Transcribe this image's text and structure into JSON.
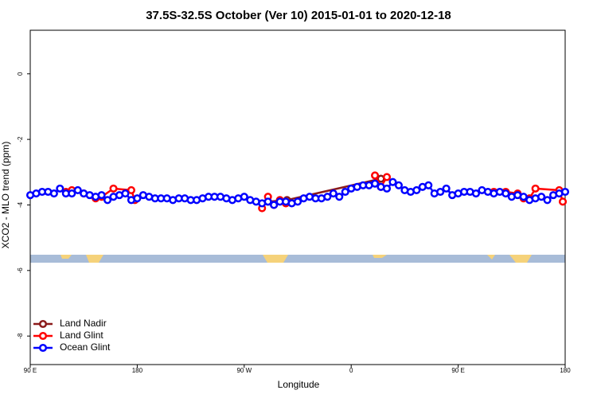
{
  "chart_data": {
    "type": "line",
    "title": "37.5S-32.5S October (Ver 10)   2015-01-01 to 2020-12-18",
    "x_label": "Longitude",
    "y_label": "XCO2 - MLO trend (ppm)",
    "xlim": [
      90,
      540
    ],
    "ylim": [
      -8.87,
      1.33
    ],
    "xticks": [
      {
        "value": 90,
        "label": "90 E"
      },
      180,
      {
        "value": 270,
        "label": "90 W"
      },
      {
        "value": 360,
        "label": "0"
      },
      {
        "value": 450,
        "label": "90 E"
      },
      {
        "value": 540,
        "label": "180"
      }
    ],
    "yticks": [
      0,
      -2,
      -4,
      -6,
      -8
    ],
    "legend": "bottom-left",
    "series": [
      {
        "name": "Land Nadir",
        "color": "#8b1a1a",
        "x": [
          290,
          306,
          385
        ],
        "values": [
          -3.9,
          -3.85,
          -3.2
        ]
      },
      {
        "name": "Land Glint",
        "color": "#ff0000",
        "x": [
          120,
          125,
          135,
          145,
          150,
          160,
          175,
          178,
          200,
          285,
          290,
          295,
          300,
          305,
          330,
          380,
          385,
          390,
          420,
          480,
          490,
          500,
          505,
          510,
          515,
          535,
          538
        ],
        "values": [
          -3.6,
          -3.55,
          -3.65,
          -3.8,
          -3.75,
          -3.5,
          -3.55,
          -3.85,
          null,
          -4.1,
          -3.75,
          -4.0,
          -3.85,
          -3.95,
          null,
          -3.1,
          -3.45,
          -3.15,
          null,
          -3.6,
          -3.6,
          -3.65,
          -3.8,
          -3.8,
          -3.5,
          -3.55,
          -3.9
        ]
      },
      {
        "name": "Ocean Glint",
        "color": "#0000ff",
        "x": [
          90,
          95,
          100,
          105,
          110,
          115,
          120,
          125,
          130,
          135,
          140,
          145,
          150,
          155,
          160,
          165,
          170,
          175,
          180,
          185,
          190,
          195,
          200,
          205,
          210,
          215,
          220,
          225,
          230,
          235,
          240,
          245,
          250,
          255,
          260,
          265,
          270,
          275,
          280,
          285,
          290,
          295,
          300,
          305,
          310,
          315,
          320,
          325,
          330,
          335,
          340,
          345,
          350,
          355,
          360,
          365,
          370,
          375,
          380,
          385,
          390,
          395,
          400,
          405,
          410,
          415,
          420,
          425,
          430,
          435,
          440,
          445,
          450,
          455,
          460,
          465,
          470,
          475,
          480,
          485,
          490,
          495,
          500,
          505,
          510,
          515,
          520,
          525,
          530,
          535,
          540
        ],
        "values": [
          -3.7,
          -3.65,
          -3.6,
          -3.6,
          -3.65,
          -3.5,
          -3.65,
          -3.65,
          -3.55,
          -3.65,
          -3.7,
          -3.75,
          -3.7,
          -3.85,
          -3.75,
          -3.7,
          -3.65,
          -3.85,
          -3.8,
          -3.7,
          -3.75,
          -3.8,
          -3.8,
          -3.8,
          -3.85,
          -3.8,
          -3.8,
          -3.85,
          -3.85,
          -3.8,
          -3.75,
          -3.75,
          -3.75,
          -3.8,
          -3.85,
          -3.8,
          -3.75,
          -3.85,
          -3.9,
          -3.95,
          -3.9,
          -4.0,
          -3.9,
          -3.9,
          -3.95,
          -3.9,
          -3.8,
          -3.75,
          -3.8,
          -3.8,
          -3.75,
          -3.65,
          -3.75,
          -3.6,
          -3.5,
          -3.45,
          -3.4,
          -3.4,
          -3.35,
          -3.45,
          -3.5,
          -3.3,
          -3.4,
          -3.55,
          -3.6,
          -3.55,
          -3.45,
          -3.4,
          -3.65,
          -3.6,
          -3.5,
          -3.7,
          -3.65,
          -3.6,
          -3.6,
          -3.65,
          -3.55,
          -3.6,
          -3.65,
          -3.6,
          -3.65,
          -3.75,
          -3.7,
          -3.75,
          -3.85,
          -3.8,
          -3.75,
          -3.85,
          -3.7,
          -3.65,
          -3.6
        ]
      }
    ]
  }
}
